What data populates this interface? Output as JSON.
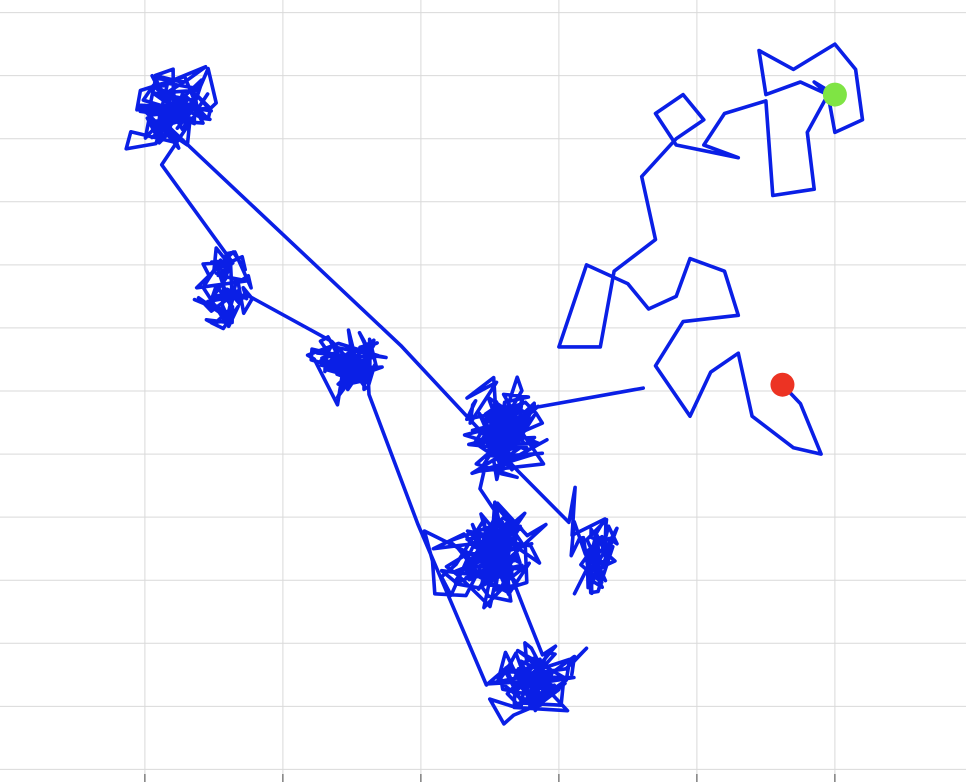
{
  "chart_data": {
    "type": "line",
    "title": "",
    "xlabel": "",
    "ylabel": "",
    "grid": true,
    "xlim": [
      -1.05,
      5.95
    ],
    "ylim": [
      -5.6,
      0.6
    ],
    "x_grid": [
      0,
      1,
      2,
      3,
      4,
      5
    ],
    "y_grid": [
      0.5,
      0,
      -0.5,
      -1,
      -1.5,
      -2,
      -2.5,
      -3,
      -3.5,
      -4,
      -4.5,
      -5,
      -5.5
    ],
    "series": [
      {
        "path_color": "#0a1fe6",
        "start_color": "#ec3323",
        "end_color": "#7fe444",
        "start": [
          4.62,
          -2.45
        ],
        "end": [
          5.0,
          -0.15
        ],
        "waypoints": [
          [
            4.62,
            -2.45
          ],
          [
            4.75,
            -2.6
          ],
          [
            4.9,
            -3.0
          ],
          [
            4.7,
            -2.95
          ],
          [
            4.4,
            -2.7
          ],
          [
            4.3,
            -2.2
          ],
          [
            4.1,
            -2.35
          ],
          [
            3.95,
            -2.7
          ],
          [
            3.7,
            -2.3
          ],
          [
            3.9,
            -1.95
          ],
          [
            4.3,
            -1.9
          ],
          [
            4.2,
            -1.55
          ],
          [
            3.95,
            -1.45
          ],
          [
            3.85,
            -1.75
          ],
          [
            3.65,
            -1.85
          ],
          [
            3.5,
            -1.65
          ],
          [
            3.2,
            -1.5
          ],
          [
            3.0,
            -2.15
          ],
          [
            3.3,
            -2.15
          ],
          [
            3.4,
            -1.55
          ],
          [
            3.7,
            -1.3
          ],
          [
            3.6,
            -0.8
          ],
          [
            3.85,
            -0.5
          ],
          [
            4.05,
            -0.35
          ],
          [
            3.9,
            -0.15
          ],
          [
            3.7,
            -0.3
          ],
          [
            3.85,
            -0.55
          ],
          [
            4.3,
            -0.65
          ],
          [
            4.05,
            -0.55
          ],
          [
            4.2,
            -0.3
          ],
          [
            4.5,
            -0.2
          ],
          [
            4.55,
            -0.95
          ],
          [
            4.85,
            -0.9
          ],
          [
            4.8,
            -0.45
          ],
          [
            4.95,
            -0.15
          ],
          [
            4.75,
            -0.05
          ],
          [
            4.5,
            -0.15
          ],
          [
            4.45,
            0.2
          ],
          [
            4.7,
            0.05
          ],
          [
            5.0,
            0.25
          ],
          [
            5.15,
            0.05
          ],
          [
            5.2,
            -0.35
          ],
          [
            5.0,
            -0.45
          ],
          [
            4.95,
            -0.15
          ],
          [
            4.85,
            -0.05
          ],
          [
            5.0,
            -0.15
          ]
        ]
      }
    ],
    "clusters": [
      {
        "center": [
          2.6,
          -2.8
        ],
        "spread": [
          0.42,
          0.5
        ],
        "count": 160
      },
      {
        "center": [
          2.5,
          -3.8
        ],
        "spread": [
          0.5,
          0.55
        ],
        "count": 150
      },
      {
        "center": [
          2.8,
          -4.8
        ],
        "spread": [
          0.45,
          0.45
        ],
        "count": 120
      },
      {
        "center": [
          1.5,
          -2.3
        ],
        "spread": [
          0.45,
          0.4
        ],
        "count": 90
      },
      {
        "center": [
          0.6,
          -1.7
        ],
        "spread": [
          0.35,
          0.45
        ],
        "count": 70
      },
      {
        "center": [
          0.2,
          -0.2
        ],
        "spread": [
          0.45,
          0.45
        ],
        "count": 110
      },
      {
        "center": [
          3.3,
          -3.8
        ],
        "spread": [
          0.25,
          0.5
        ],
        "count": 60
      }
    ]
  }
}
